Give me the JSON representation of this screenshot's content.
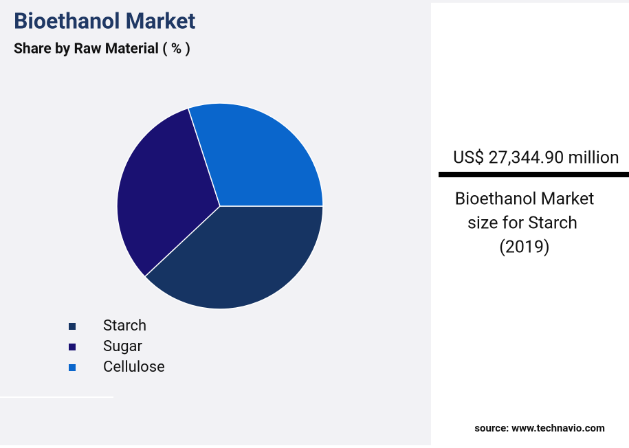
{
  "chart_data": {
    "type": "pie",
    "title": "Bioethanol Market",
    "subtitle": "Share by Raw Material ( % )",
    "categories": [
      "Starch",
      "Sugar",
      "Cellulose"
    ],
    "values": [
      38,
      32,
      30
    ],
    "colors": [
      "#163463",
      "#1a1172",
      "#0a66cc"
    ]
  },
  "callout": {
    "value": "US$ 27,344.90 million",
    "caption": [
      "Bioethanol Market",
      "size for Starch",
      "(2019)"
    ]
  },
  "source": "source: www.technavio.com"
}
